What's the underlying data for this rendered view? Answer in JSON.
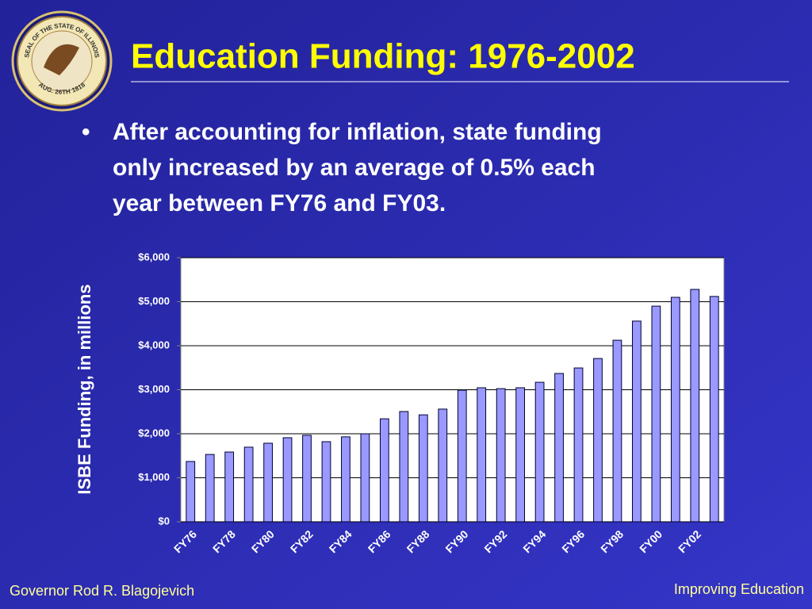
{
  "slide": {
    "title": "Education Funding: 1976-2002",
    "bullet": [
      "After accounting for inflation, state funding",
      "only increased by an average of 0.5% each",
      "year between FY76 and FY03."
    ],
    "footer_left": "Governor Rod R. Blagojevich",
    "footer_right": "Improving Education"
  },
  "seal": {
    "ring_top": "SEAL OF THE STATE OF ILLINOIS",
    "ring_bottom": "AUG. 26TH 1818"
  },
  "chart_data": {
    "type": "bar",
    "y_label": "ISBE Funding, in millions",
    "categories": [
      "FY76",
      null,
      "FY78",
      null,
      "FY80",
      null,
      "FY82",
      null,
      "FY84",
      null,
      "FY86",
      null,
      "FY88",
      null,
      "FY90",
      null,
      "FY92",
      null,
      "FY94",
      null,
      "FY96",
      null,
      "FY98",
      null,
      "FY00",
      null,
      "FY02",
      null
    ],
    "values": [
      1370,
      1530,
      1585,
      1695,
      1785,
      1910,
      1965,
      1820,
      1930,
      2000,
      2340,
      2505,
      2430,
      2560,
      2990,
      3045,
      3025,
      3045,
      3170,
      3370,
      3495,
      3710,
      4125,
      4560,
      4900,
      5100,
      5280,
      5120
    ],
    "color": "#9999ff",
    "ylim": [
      0,
      6000
    ],
    "yticks": [
      {
        "value": 0,
        "label": "$0"
      },
      {
        "value": 1000,
        "label": "$1,000"
      },
      {
        "value": 2000,
        "label": "$2,000"
      },
      {
        "value": 3000,
        "label": "$3,000"
      },
      {
        "value": 4000,
        "label": "$4,000"
      },
      {
        "value": 5000,
        "label": "$5,000"
      },
      {
        "value": 6000,
        "label": "$6,000"
      }
    ],
    "grid": true
  }
}
